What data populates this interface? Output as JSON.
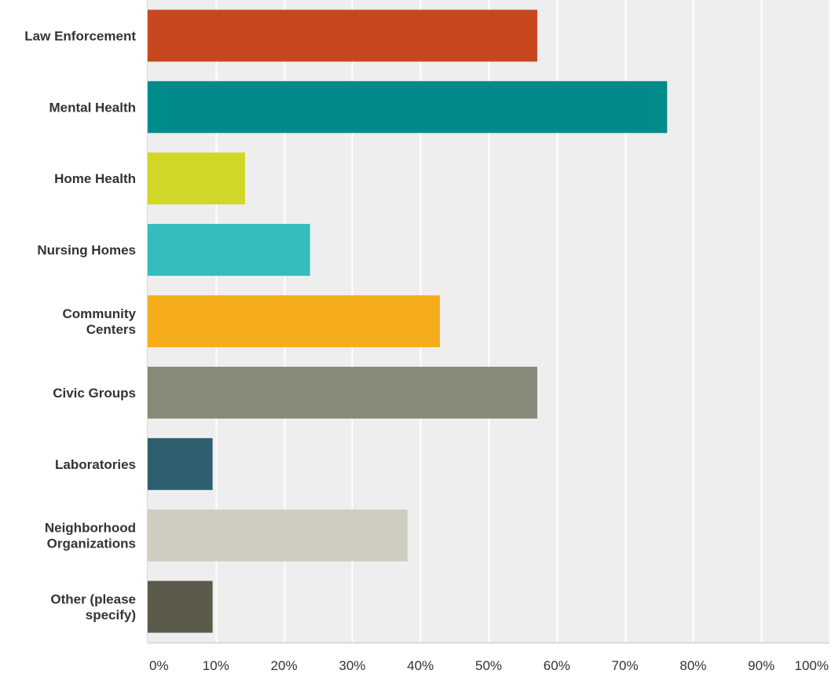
{
  "chart_data": {
    "type": "bar",
    "orientation": "horizontal",
    "categories": [
      "Law Enforcement",
      "Mental Health",
      "Home Health",
      "Nursing Homes",
      "Community Centers",
      "Civic Groups",
      "Laboratories",
      "Neighborhood Organizations",
      "Other (please specify)"
    ],
    "category_label_lines": [
      [
        "Law Enforcement"
      ],
      [
        "Mental Health"
      ],
      [
        "Home Health"
      ],
      [
        "Nursing Homes"
      ],
      [
        "Community",
        "Centers"
      ],
      [
        "Civic Groups"
      ],
      [
        "Laboratories"
      ],
      [
        "Neighborhood",
        "Organizations"
      ],
      [
        "Other (please",
        "specify)"
      ]
    ],
    "values": [
      57.14,
      76.19,
      14.29,
      23.81,
      42.86,
      57.14,
      9.52,
      38.1,
      9.52
    ],
    "bar_colors": [
      "#c8471e",
      "#008b8b",
      "#d0d727",
      "#33bdbd",
      "#f6ad1d",
      "#8a8a7a",
      "#2e5f6e",
      "#cfcdbf",
      "#5c5b4b"
    ],
    "x_ticks": [
      "0%",
      "10%",
      "20%",
      "30%",
      "40%",
      "50%",
      "60%",
      "70%",
      "80%",
      "90%",
      "100%"
    ],
    "xlim": [
      0,
      100
    ],
    "xlabel": "",
    "ylabel": "",
    "title": "",
    "grid": true,
    "legend": "none",
    "colors": {
      "plot_background": "#efeeee",
      "grid_line": "#ffffff",
      "axis_line": "#d9d9d9",
      "text": "#333333"
    }
  }
}
